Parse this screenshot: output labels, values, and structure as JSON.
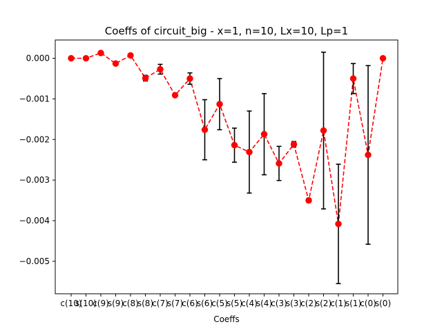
{
  "chart_data": {
    "type": "line",
    "title": "Coeffs of circuit_big - x=1, n=10, Lx=10, Lp=1",
    "xlabel": "Coeffs",
    "ylabel": "",
    "categories": [
      "c(10)",
      "s(10)",
      "c(9)",
      "s(9)",
      "c(8)",
      "s(8)",
      "c(7)",
      "s(7)",
      "c(6)",
      "s(6)",
      "c(5)",
      "s(5)",
      "c(4)",
      "s(4)",
      "c(3)",
      "s(3)",
      "c(2)",
      "s(2)",
      "c(1)",
      "s(1)",
      "c(0)",
      "s(0)"
    ],
    "yticks": [
      "0.000",
      "−0.001",
      "−0.002",
      "−0.003",
      "−0.004",
      "−0.005"
    ],
    "ytick_values": [
      0,
      -0.001,
      -0.002,
      -0.003,
      -0.004,
      -0.005
    ],
    "ylim": [
      -0.0058,
      0.00045
    ],
    "grid": false,
    "series": [
      {
        "color": "#ff0000",
        "line_style": "dashed",
        "marker": "circle",
        "values": [
          0.0,
          0.0,
          0.00013,
          -0.00013,
          7e-05,
          -0.00049,
          -0.00027,
          -0.00091,
          -0.0005,
          -0.00176,
          -0.00113,
          -0.00214,
          -0.00231,
          -0.00187,
          -0.00259,
          -0.00212,
          -0.0035,
          -0.00178,
          -0.00408,
          -0.0005,
          -0.00238,
          0.0
        ],
        "errors": [
          1e-05,
          1e-05,
          4e-05,
          2e-05,
          4e-05,
          7e-05,
          0.00012,
          2e-05,
          0.00014,
          0.00074,
          0.00063,
          0.00042,
          0.00101,
          0.001,
          0.00042,
          7e-05,
          5e-05,
          0.00193,
          0.00147,
          0.00037,
          0.0022,
          1e-05
        ],
        "error_color": "#000000"
      }
    ]
  }
}
